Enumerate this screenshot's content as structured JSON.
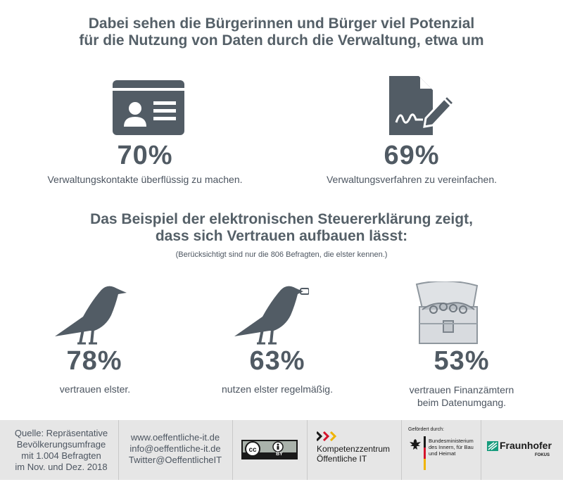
{
  "heading1": {
    "line1": "Dabei sehen die Bürgerinnen und Bürger viel Potenzial",
    "line2": "für die Nutzung von Daten durch die Verwaltung, etwa um"
  },
  "stats_top": [
    {
      "value": "70%",
      "caption": "Verwaltungskontakte überflüssig zu machen.",
      "icon": "id-card-icon"
    },
    {
      "value": "69%",
      "caption": "Verwaltungsverfahren zu vereinfachen.",
      "icon": "document-sign-icon"
    }
  ],
  "heading2": {
    "line1": "Das Beispiel der elektronischen Steuererklärung zeigt,",
    "line2": "dass sich Vertrauen aufbauen lässt:",
    "note": "(Berücksichtigt sind nur die 806 Befragten, die elster kennen.)"
  },
  "stats_bottom": [
    {
      "value": "78%",
      "caption_line1": "vertrauen elster.",
      "caption_line2": "",
      "icon": "bird-icon"
    },
    {
      "value": "63%",
      "caption_line1": "nutzen elster regelmäßig.",
      "caption_line2": "",
      "icon": "bird-with-key-icon"
    },
    {
      "value": "53%",
      "caption_line1": "vertrauen Finanzämtern",
      "caption_line2": "beim Datenumgang.",
      "icon": "treasure-chest-icon"
    }
  ],
  "footer": {
    "source": [
      "Quelle: Repräsentative",
      "Bevölkerungsumfrage",
      "mit 1.004 Befragten",
      "im Nov. und Dez. 2018"
    ],
    "contact": [
      "www.oeffentliche-it.de",
      "info@oeffentliche-it.de",
      "Twitter@OeffentlicheIT"
    ],
    "license_label": "BY",
    "kompetenz": [
      "Kompetenzzentrum",
      "Öffentliche IT"
    ],
    "funded_by": "Gefördert durch:",
    "ministry": [
      "Bundesministerium",
      "des Innern, für Bau",
      "und Heimat"
    ],
    "fraunhofer": "Fraunhofer",
    "fokus": "FOKUS"
  },
  "colors": {
    "icon": "#525c65",
    "text": "#4c5560",
    "footer_bg": "#e6e6e6"
  }
}
